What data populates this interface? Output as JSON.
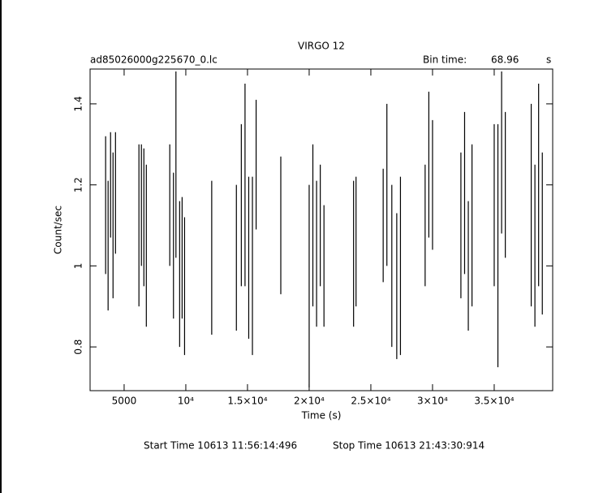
{
  "chart_data": {
    "type": "errorbar",
    "title": "VIRGO 12",
    "file_label": "ad85026000g225670_0.lc",
    "bin_time_label": "Bin time:",
    "bin_time_value": "68.96",
    "bin_time_unit": "s",
    "x_label": "Time (s)",
    "y_label": "Count/sec",
    "start_time": "Start Time 10613 11:56:14:496",
    "stop_time": "Stop Time 10613 21:43:30:914",
    "color": "#000000",
    "xlim": [
      2240,
      39740
    ],
    "ylim": [
      0.692,
      1.486
    ],
    "xticks": [
      {
        "value": 5000,
        "label": "5000"
      },
      {
        "value": 10000,
        "label": "10⁴"
      },
      {
        "value": 15000,
        "label": "1.5×10⁴"
      },
      {
        "value": 20000,
        "label": "2×10⁴"
      },
      {
        "value": 25000,
        "label": "2.5×10⁴"
      },
      {
        "value": 30000,
        "label": "3×10⁴"
      },
      {
        "value": 35000,
        "label": "3.5×10⁴"
      }
    ],
    "yticks": [
      0.8,
      1,
      1.2,
      1.4
    ],
    "x": [
      3500,
      3700,
      3900,
      4100,
      4300,
      6200,
      6400,
      6600,
      6800,
      8700,
      9000,
      9200,
      9500,
      9700,
      9900,
      12100,
      14100,
      14500,
      14800,
      15100,
      15400,
      15700,
      17700,
      20000,
      20300,
      20600,
      20900,
      21200,
      23600,
      23800,
      26000,
      26300,
      26700,
      27100,
      27400,
      29400,
      29700,
      30000,
      32300,
      32600,
      32900,
      33200,
      35000,
      35300,
      35600,
      35900,
      38000,
      38300,
      38600,
      38900
    ],
    "values": [
      1.15,
      1.05,
      1.2,
      1.1,
      1.18,
      1.1,
      1.15,
      1.12,
      1.05,
      1.15,
      1.05,
      1.25,
      0.98,
      1.02,
      0.95,
      1.02,
      1.02,
      1.15,
      1.2,
      1.02,
      1.0,
      1.25,
      1.1,
      0.95,
      1.1,
      1.03,
      1.1,
      1.0,
      1.03,
      1.06,
      1.1,
      1.2,
      1.0,
      0.95,
      1.0,
      1.1,
      1.25,
      1.2,
      1.1,
      1.18,
      1.0,
      1.1,
      1.15,
      1.05,
      1.28,
      1.2,
      1.15,
      1.05,
      1.2,
      1.08
    ],
    "errors": [
      0.17,
      0.16,
      0.13,
      0.18,
      0.15,
      0.2,
      0.15,
      0.17,
      0.2,
      0.15,
      0.18,
      0.23,
      0.18,
      0.15,
      0.17,
      0.19,
      0.18,
      0.2,
      0.25,
      0.2,
      0.22,
      0.16,
      0.17,
      0.25,
      0.2,
      0.18,
      0.15,
      0.15,
      0.18,
      0.16,
      0.14,
      0.2,
      0.2,
      0.18,
      0.22,
      0.15,
      0.18,
      0.16,
      0.18,
      0.2,
      0.16,
      0.2,
      0.2,
      0.3,
      0.2,
      0.18,
      0.25,
      0.2,
      0.25,
      0.2
    ]
  }
}
